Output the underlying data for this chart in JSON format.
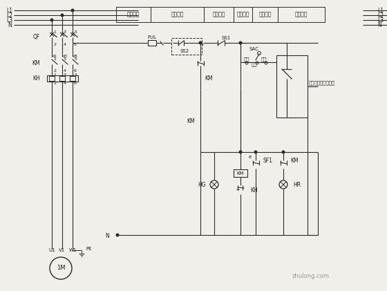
{
  "bg_color": "#f0efea",
  "line_color": "#2a2a2a",
  "text_color": "#1a1a1a",
  "fig_width": 5.6,
  "fig_height": 4.21,
  "dpi": 100,
  "header_labels": [
    "控制回路",
    "急停按钮",
    "停泵指示",
    "手控起泵",
    "运行指示",
    "自控起泵"
  ],
  "watermark": "zhulong.com",
  "right_corner_labels": [
    "L1",
    "L2",
    "L3",
    "N"
  ]
}
